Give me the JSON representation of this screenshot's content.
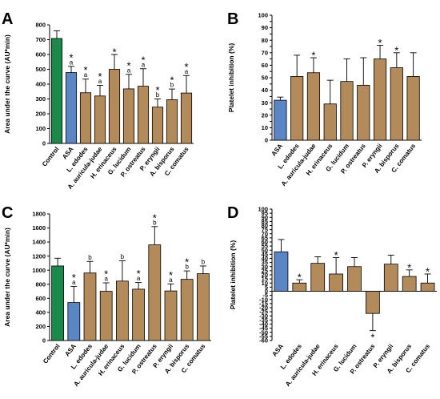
{
  "colors": {
    "control": "#1a8a4a",
    "asa": "#5b86c5",
    "mushroom": "#b38b5a",
    "stroke": "#000000"
  },
  "chart_data": [
    {
      "type": "bar",
      "panel_letter": "A",
      "ylabel": "Area under the curve (AU*min)",
      "ylim": [
        0,
        800
      ],
      "yticks": [
        0,
        100,
        200,
        300,
        400,
        500,
        600,
        700,
        800
      ],
      "categories": [
        "Control",
        "ASA",
        "L. edodes",
        "A. auricula-judae",
        "H. erinaceus",
        "G. lucidum",
        "P. ostreatus",
        "P. eryngii",
        "A. bisporus",
        "C. comatus"
      ],
      "values": [
        708,
        478,
        342,
        320,
        500,
        368,
        386,
        245,
        295,
        340
      ],
      "errors": [
        52,
        42,
        92,
        72,
        100,
        98,
        118,
        55,
        72,
        118
      ],
      "bar_colors": [
        "control",
        "asa",
        "mushroom",
        "mushroom",
        "mushroom",
        "mushroom",
        "mushroom",
        "mushroom",
        "mushroom",
        "mushroom"
      ],
      "annotations": [
        "",
        "*\na",
        "*\na",
        "*\na",
        "*",
        "*\na",
        "*\na",
        "*\nb",
        "*\nb",
        "*\na"
      ]
    },
    {
      "type": "bar",
      "panel_letter": "B",
      "ylabel": "Platelet inhibition (%)",
      "ylim": [
        0,
        100
      ],
      "yticks": [
        0,
        5,
        10,
        15,
        20,
        25,
        30,
        35,
        40,
        45,
        50,
        55,
        60,
        65,
        70,
        75,
        80,
        85,
        90,
        95,
        100
      ],
      "categories": [
        "ASA",
        "L. edodes",
        "A. auricula-judae",
        "H. erinaceus",
        "G. lucidum",
        "P. ostreatus",
        "P. eryngii",
        "A. bisporus",
        "C. comatus"
      ],
      "values": [
        32,
        51,
        54,
        29,
        47,
        44,
        65,
        58,
        51
      ],
      "errors": [
        2.5,
        17,
        12,
        19,
        18,
        22,
        11,
        12,
        19
      ],
      "bar_colors": [
        "asa",
        "mushroom",
        "mushroom",
        "mushroom",
        "mushroom",
        "mushroom",
        "mushroom",
        "mushroom",
        "mushroom"
      ],
      "annotations": [
        "",
        "",
        "*",
        "",
        "",
        "",
        "*",
        "*",
        ""
      ]
    },
    {
      "type": "bar",
      "panel_letter": "C",
      "ylabel": "Area under the curve (AU*min)",
      "ylim": [
        0,
        1800
      ],
      "yticks": [
        0,
        200,
        400,
        600,
        800,
        1000,
        1200,
        1400,
        1600,
        1800
      ],
      "categories": [
        "Control",
        "ASA",
        "L. edodes",
        "A. auricula-judae",
        "H. erinaceus",
        "G. lucidum",
        "P. ostreatus",
        "P. eryngii",
        "A. bisporus",
        "C. comatus"
      ],
      "values": [
        1060,
        540,
        960,
        700,
        845,
        730,
        1360,
        705,
        870,
        950
      ],
      "errors": [
        110,
        230,
        165,
        120,
        290,
        95,
        260,
        100,
        120,
        110
      ],
      "bar_colors": [
        "control",
        "asa",
        "mushroom",
        "mushroom",
        "mushroom",
        "mushroom",
        "mushroom",
        "mushroom",
        "mushroom",
        "mushroom"
      ],
      "annotations": [
        "",
        "*\na",
        "b",
        "*\na",
        "b",
        "*\na",
        "*\nb",
        "*\na",
        "*\nb",
        "b"
      ]
    },
    {
      "type": "bar",
      "panel_letter": "D",
      "ylabel": "Platelet inhibition (%)",
      "ylim": [
        -60,
        100
      ],
      "yticks": [
        -60,
        -55,
        -50,
        -45,
        -40,
        -35,
        -30,
        -25,
        -20,
        -15,
        -10,
        -5,
        0,
        5,
        10,
        15,
        20,
        25,
        30,
        35,
        40,
        45,
        50,
        55,
        60,
        65,
        70,
        75,
        80,
        85,
        90,
        95,
        100
      ],
      "categories": [
        "ASA",
        "L. edodes",
        "A. auricula-judae",
        "H. erinaceus",
        "G. lucidum",
        "P. ostreatus",
        "P. eryngii",
        "A. bisporus",
        "C. comatus"
      ],
      "values": [
        48,
        10,
        34,
        21,
        30,
        -27,
        33,
        18,
        10
      ],
      "errors": [
        15,
        4,
        8,
        20,
        11,
        21,
        11,
        8,
        11
      ],
      "bar_colors": [
        "asa",
        "mushroom",
        "mushroom",
        "mushroom",
        "mushroom",
        "mushroom",
        "mushroom",
        "mushroom",
        "mushroom"
      ],
      "annotations": [
        "",
        "*",
        "",
        "*",
        "",
        "*",
        "",
        "*",
        "*"
      ]
    }
  ]
}
